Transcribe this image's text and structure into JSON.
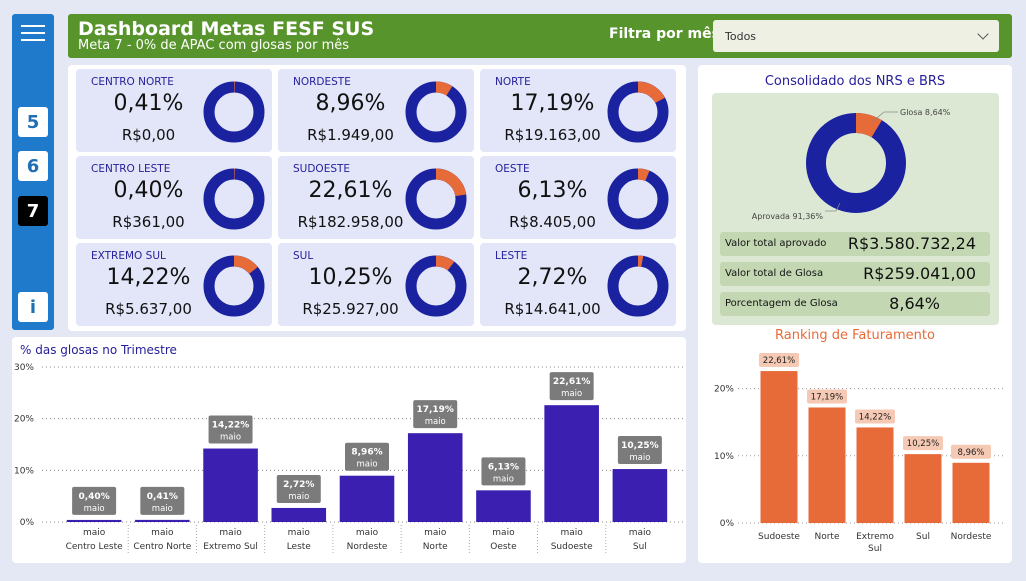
{
  "sidebar": {
    "menu_icon": "hamburger-menu-icon",
    "pages": [
      "5",
      "6",
      "7"
    ],
    "active_page": "7",
    "info_label": "i"
  },
  "header": {
    "title": "Dashboard Metas FESF SUS",
    "subtitle": "Meta 7 - 0% de APAC com glosas por mês",
    "filter_label": "Filtra por mês:",
    "filter_value": "Todos",
    "bg_color": "#58942c"
  },
  "regions": [
    {
      "name": "CENTRO NORTE",
      "pct_label": "0,41%",
      "value": "R$0,00",
      "pct": 0.41
    },
    {
      "name": "NORDESTE",
      "pct_label": "8,96%",
      "value": "R$1.949,00",
      "pct": 8.96
    },
    {
      "name": "NORTE",
      "pct_label": "17,19%",
      "value": "R$19.163,00",
      "pct": 17.19
    },
    {
      "name": "CENTRO LESTE",
      "pct_label": "0,40%",
      "value": "R$361,00",
      "pct": 0.4
    },
    {
      "name": "SUDOESTE",
      "pct_label": "22,61%",
      "value": "R$182.958,00",
      "pct": 22.61
    },
    {
      "name": "OESTE",
      "pct_label": "6,13%",
      "value": "R$8.405,00",
      "pct": 6.13
    },
    {
      "name": "EXTREMO SUL",
      "pct_label": "14,22%",
      "value": "R$5.637,00",
      "pct": 14.22
    },
    {
      "name": "SUL",
      "pct_label": "10,25%",
      "value": "R$25.927,00",
      "pct": 10.25
    },
    {
      "name": "LESTE",
      "pct_label": "2,72%",
      "value": "R$14.641,00",
      "pct": 2.72
    }
  ],
  "colors": {
    "donut_main": "#1a22a0",
    "donut_glosa": "#e76b38",
    "bar": "#3a1fb0",
    "rank_bar": "#e76b38",
    "rank_label_bg": "#f6c9b4",
    "bar_label_bg": "#7b7b7b"
  },
  "consolidado": {
    "title": "Consolidado dos NRS  e BRS",
    "glosa_label": "Glosa 8,64%",
    "aprovada_label": "Aprovada 91,36%",
    "glosa_pct": 8.64,
    "rows": [
      {
        "label": "Valor total aprovado",
        "value": "R$3.580.732,24"
      },
      {
        "label": "Valor total de Glosa",
        "value": "R$259.041,00"
      },
      {
        "label": "Porcentagem de Glosa",
        "value": "8,64%"
      }
    ]
  },
  "chart_data": [
    {
      "type": "bar",
      "title": "% das glosas no Trimestre",
      "categories": [
        "Centro Leste",
        "Centro Norte",
        "Extremo Sul",
        "Leste",
        "Nordeste",
        "Norte",
        "Oeste",
        "Sudoeste",
        "Sul"
      ],
      "x_sublabel": "maio",
      "values": [
        0.4,
        0.41,
        14.22,
        2.72,
        8.96,
        17.19,
        6.13,
        22.61,
        10.25
      ],
      "data_labels": [
        "0,40%",
        "0,41%",
        "14,22%",
        "2,72%",
        "8,96%",
        "17,19%",
        "6,13%",
        "22,61%",
        "10,25%"
      ],
      "data_sublabel": "maio",
      "yticks": [
        "0%",
        "10%",
        "20%",
        "30%"
      ],
      "ylim": [
        0,
        30
      ],
      "grid": true
    },
    {
      "type": "bar",
      "title": "Ranking de Faturamento",
      "categories": [
        "Sudoeste",
        "Norte",
        "Extremo Sul",
        "Sul",
        "Nordeste"
      ],
      "values": [
        22.61,
        17.19,
        14.22,
        10.25,
        8.96
      ],
      "data_labels": [
        "22,61%",
        "17,19%",
        "14,22%",
        "10,25%",
        "8,96%"
      ],
      "yticks": [
        "0%",
        "10%",
        "20%"
      ],
      "ylim": [
        0,
        25
      ],
      "grid": true
    }
  ]
}
